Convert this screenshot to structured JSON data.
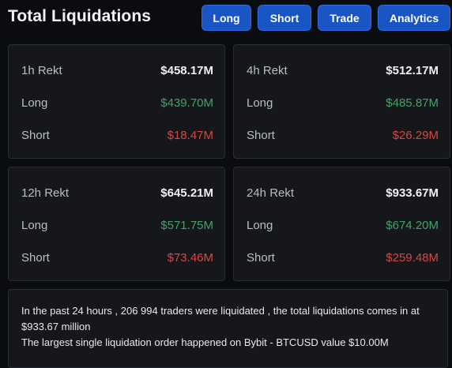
{
  "header": {
    "title": "Total Liquidations",
    "tabs": [
      {
        "label": "Long"
      },
      {
        "label": "Short"
      },
      {
        "label": "Trade"
      },
      {
        "label": "Analytics"
      }
    ]
  },
  "cards": [
    {
      "period_label": "1h Rekt",
      "total": "$458.17M",
      "long_label": "Long",
      "long": "$439.70M",
      "short_label": "Short",
      "short": "$18.47M"
    },
    {
      "period_label": "4h Rekt",
      "total": "$512.17M",
      "long_label": "Long",
      "long": "$485.87M",
      "short_label": "Short",
      "short": "$26.29M"
    },
    {
      "period_label": "12h Rekt",
      "total": "$645.21M",
      "long_label": "Long",
      "long": "$571.75M",
      "short_label": "Short",
      "short": "$73.46M"
    },
    {
      "period_label": "24h Rekt",
      "total": "$933.67M",
      "long_label": "Long",
      "long": "$674.20M",
      "short_label": "Short",
      "short": "$259.48M"
    }
  ],
  "summary": {
    "line1": "In the past 24 hours , 206 994 traders were liquidated , the total liquidations comes in at $933.67 million",
    "line2": "The largest single liquidation order happened on Bybit - BTCUSD value $10.00M"
  },
  "colors": {
    "accent": "#1a55c4",
    "long": "#3fa566",
    "short": "#d9463f",
    "background": "#0b0c0f",
    "card": "#15171b"
  }
}
